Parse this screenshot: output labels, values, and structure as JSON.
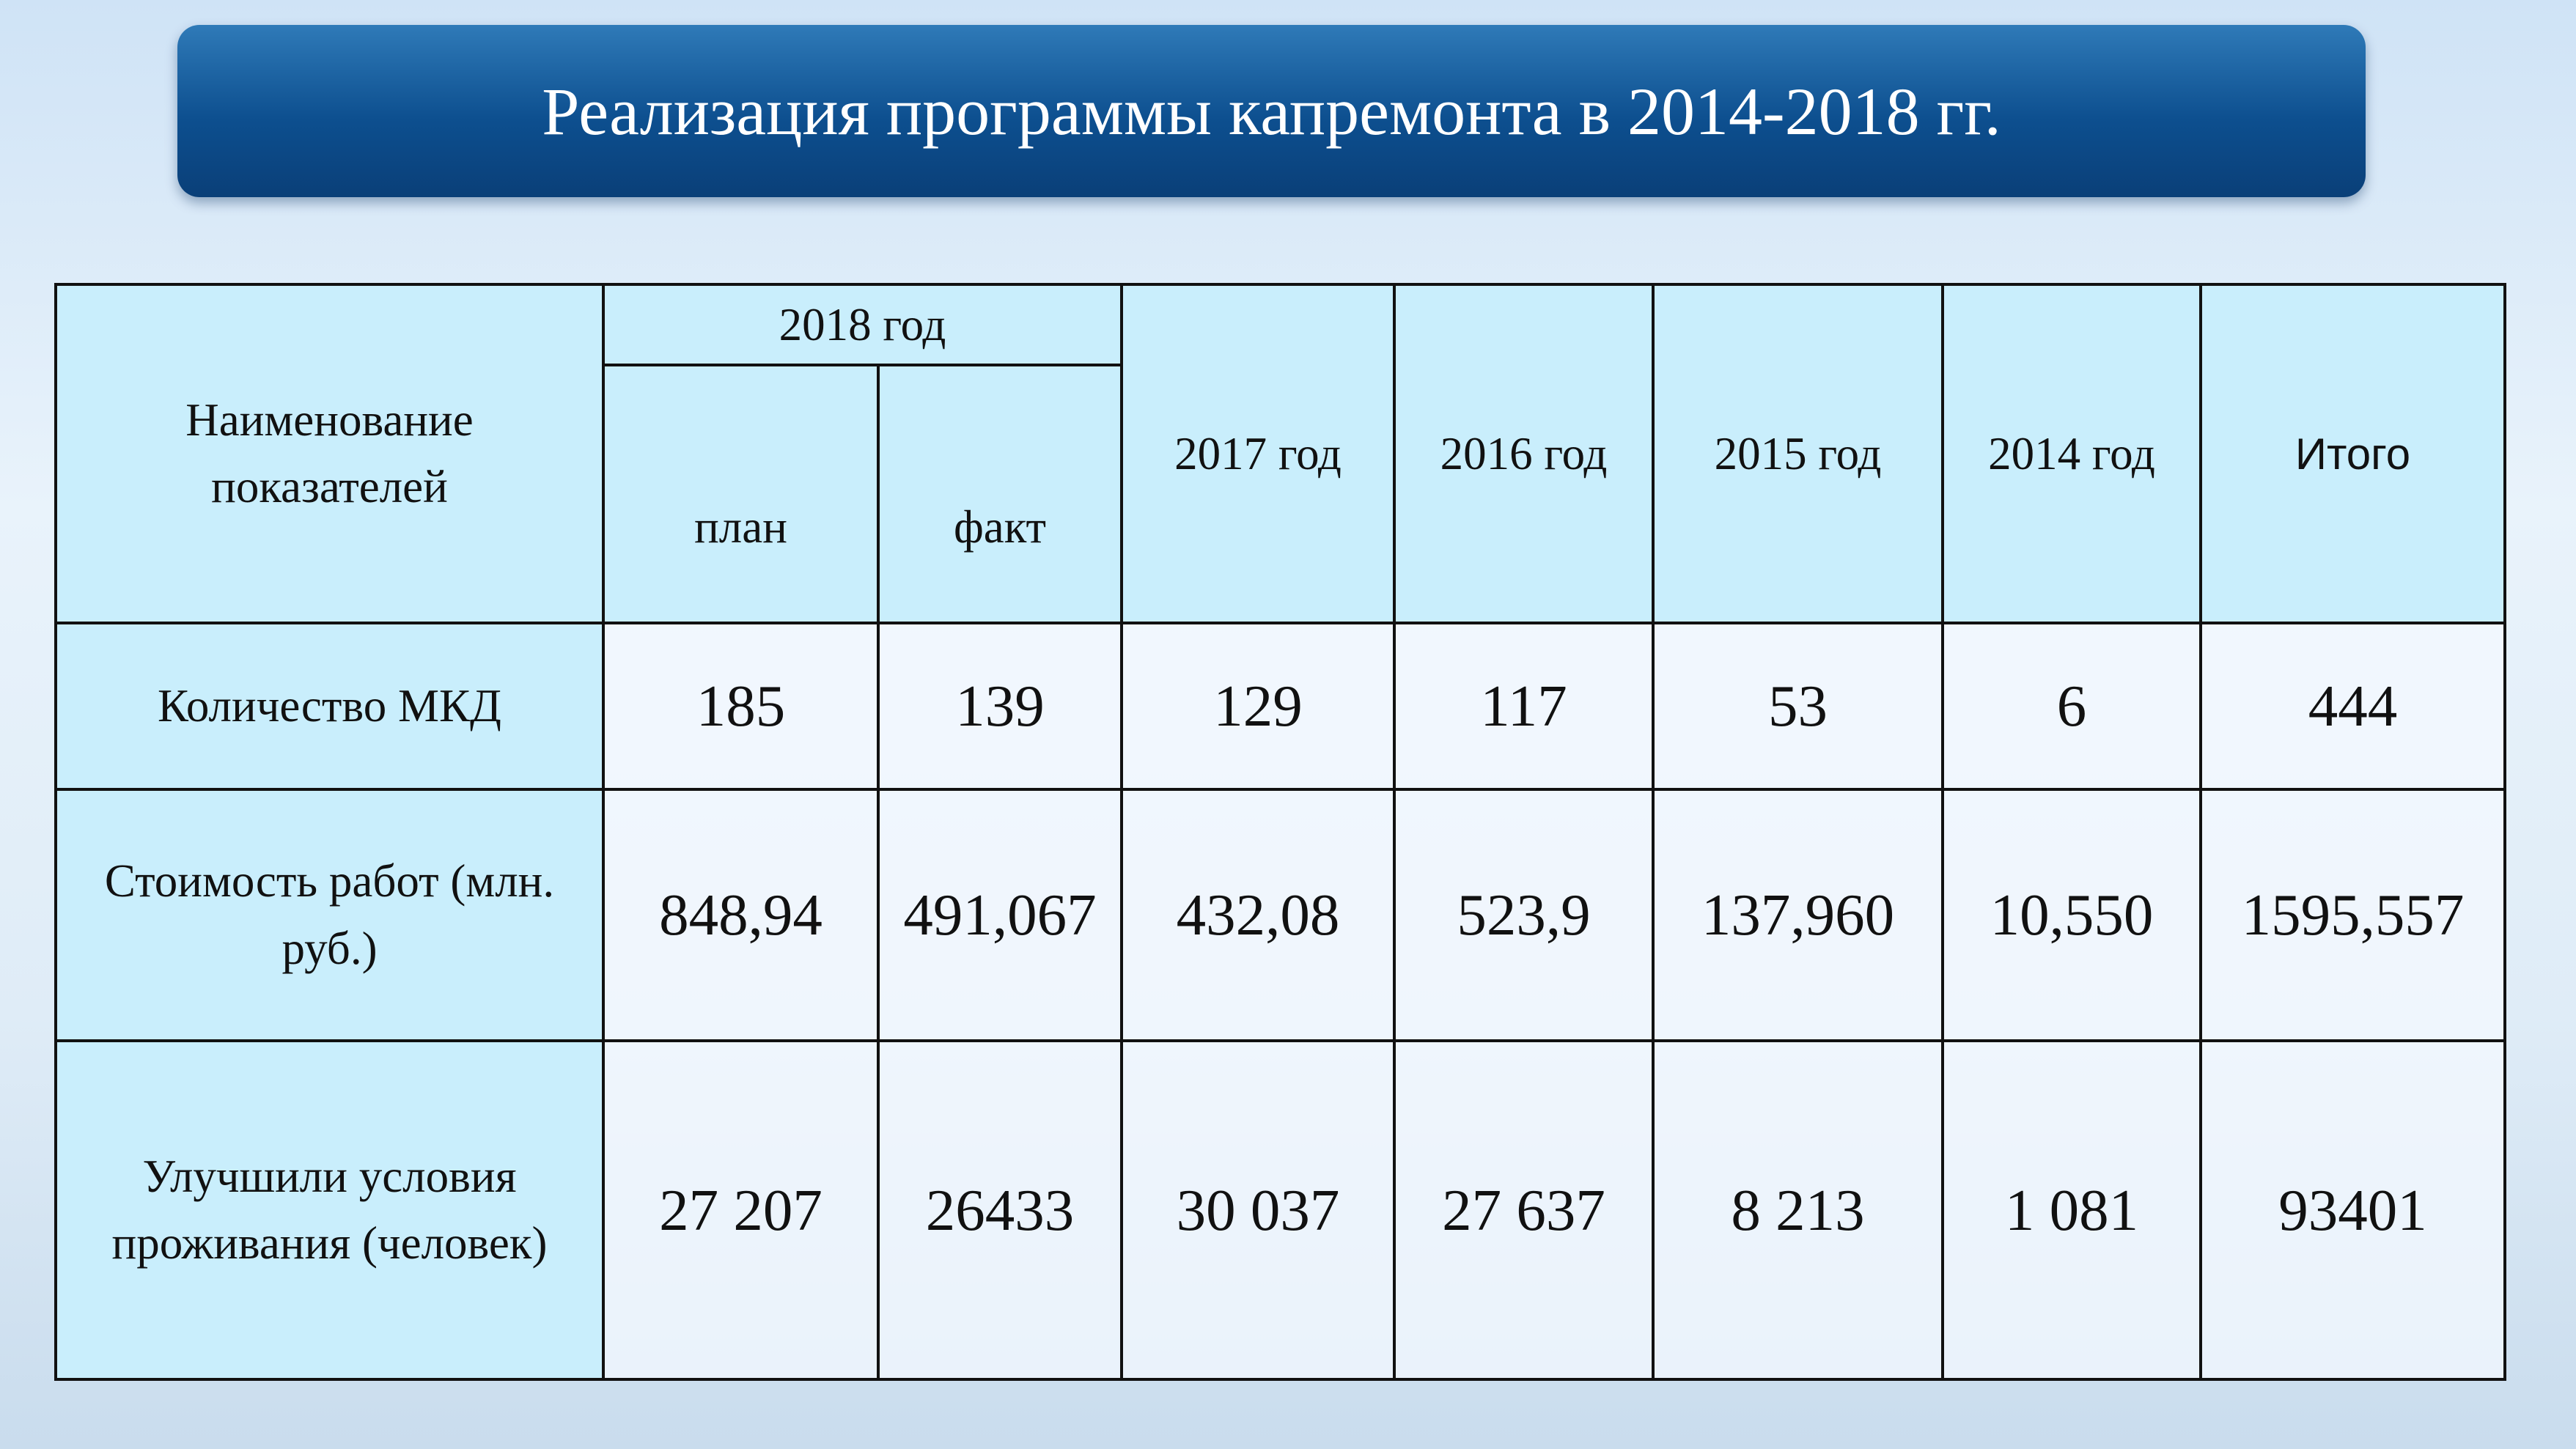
{
  "header": {
    "title": "Реализация программы капремонта в 2014-2018 гг."
  },
  "table": {
    "corner": "Наименование показателей",
    "group": "2018 год",
    "sub": [
      "план",
      "факт"
    ],
    "columns": [
      "2017 год",
      "2016 год",
      "2015 год",
      "2014 год",
      "Итого"
    ],
    "rows": [
      [
        "Количество МКД",
        "185",
        "139",
        "129",
        "117",
        "53",
        "6",
        "444"
      ],
      [
        "Стоимость работ (млн. руб.)",
        "848,94",
        "491,067",
        "432,08",
        "523,9",
        "137,960",
        "10,550",
        "1595,557"
      ],
      [
        "Улучшили условия проживания (человек)",
        "27 207",
        "26433",
        "30 037",
        "27 637",
        "8 213",
        "1 081",
        "93401"
      ]
    ]
  }
}
